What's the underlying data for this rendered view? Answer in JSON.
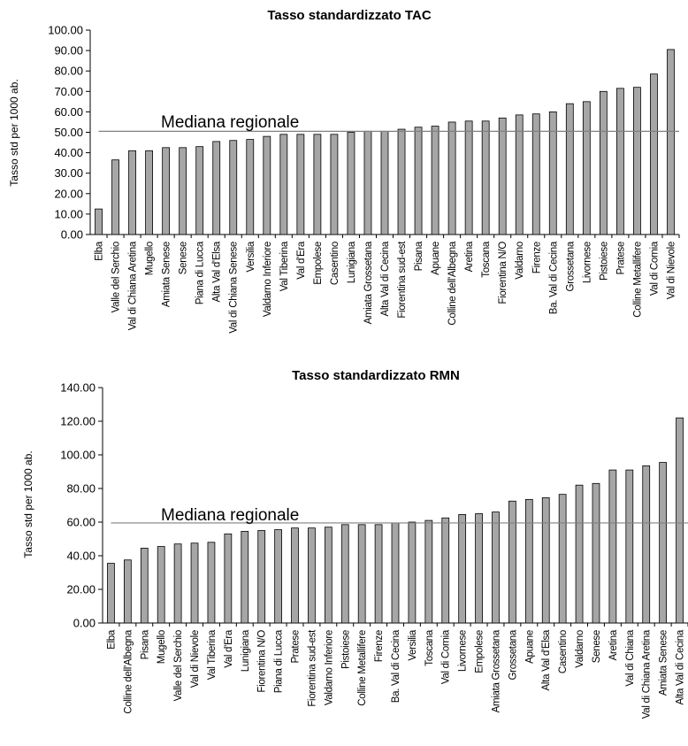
{
  "chart_data": [
    {
      "type": "bar",
      "title": "Tasso standardizzato TAC",
      "ylabel": "Tasso std per 1000 ab.",
      "xlabel": "",
      "ylim": [
        0,
        100
      ],
      "yticks": [
        "0.00",
        "10.00",
        "20.00",
        "30.00",
        "40.00",
        "50.00",
        "60.00",
        "70.00",
        "80.00",
        "90.00",
        "100.00"
      ],
      "reference_line": {
        "label": "Mediana regionale",
        "value": 50.5
      },
      "categories": [
        "Elba",
        "Valle del Serchio",
        "Val di Chiana Aretina",
        "Mugello",
        "Amiata Senese",
        "Senese",
        "Piana di Lucca",
        "Alta Val d'Elsa",
        "Val di Chiana Senese",
        "Versilia",
        "Valdarno Inferiore",
        "Val Tiberina",
        "Val d'Era",
        "Empolese",
        "Casentino",
        "Lunigiana",
        "Amiata Grossetana",
        "Alta Val di Cecina",
        "Fiorentina sud-est",
        "Pisana",
        "Apuane",
        "Colline dell'Albegna",
        "Aretina",
        "Toscana",
        "Fiorentina N/O",
        "Valdarno",
        "Firenze",
        "Ba. Val di Cecina",
        "Grossetana",
        "Livornese",
        "Pistoiese",
        "Pratese",
        "Colline Metallifere",
        "Val di Cornia",
        "Val di Nievole"
      ],
      "values": [
        12.5,
        36.5,
        41,
        41,
        42.5,
        42.5,
        43,
        45.5,
        46,
        46.5,
        48,
        49,
        49,
        49,
        49,
        50,
        50.5,
        50.5,
        51.5,
        52.5,
        53,
        55,
        55.5,
        55.5,
        57,
        58.5,
        59,
        60,
        64,
        65,
        70,
        71.5,
        72,
        78.5,
        90.5
      ],
      "bar_color": "#a6a6a6"
    },
    {
      "type": "bar",
      "title": "Tasso standardizzato RMN",
      "ylabel": "Tasso std per 1000 ab.",
      "xlabel": "",
      "ylim": [
        0,
        140
      ],
      "yticks": [
        "0.00",
        "20.00",
        "40.00",
        "60.00",
        "80.00",
        "100.00",
        "120.00",
        "140.00"
      ],
      "reference_line": {
        "label": "Mediana regionale",
        "value": 59.5
      },
      "categories": [
        "Elba",
        "Colline dell'Albegna",
        "Pisana",
        "Mugello",
        "Valle del Serchio",
        "Val di Nievole",
        "Val Tiberina",
        "Val d'Era",
        "Lunigiana",
        "Fiorentina N/O",
        "Piana di Lucca",
        "Pratese",
        "Fiorentina sud-est",
        "Valdarno Inferiore",
        "Pistoiese",
        "Colline Metallifere",
        "Firenze",
        "Ba. Val di Cecina",
        "Versilia",
        "Toscana",
        "Val di Cornia",
        "Livornese",
        "Empolese",
        "Amiata Grossetana",
        "Grossetana",
        "Apuane",
        "Alta Val d'Elsa",
        "Casentino",
        "Valdarno",
        "Senese",
        "Aretina",
        "Val di Chiana",
        "Val di Chiana Aretina",
        "Amiata Senese",
        "Alta Val di Cecina"
      ],
      "values": [
        35.5,
        37.5,
        44.5,
        45.5,
        47,
        47.5,
        48,
        53,
        54.5,
        55,
        55.5,
        56.5,
        56.5,
        57,
        58.5,
        58.5,
        58.5,
        59.5,
        60,
        61,
        62.5,
        64.5,
        65,
        66,
        72.5,
        73.5,
        74.5,
        76.5,
        82,
        83,
        91,
        91,
        93.5,
        95.5,
        122
      ],
      "bar_color": "#a6a6a6"
    }
  ]
}
